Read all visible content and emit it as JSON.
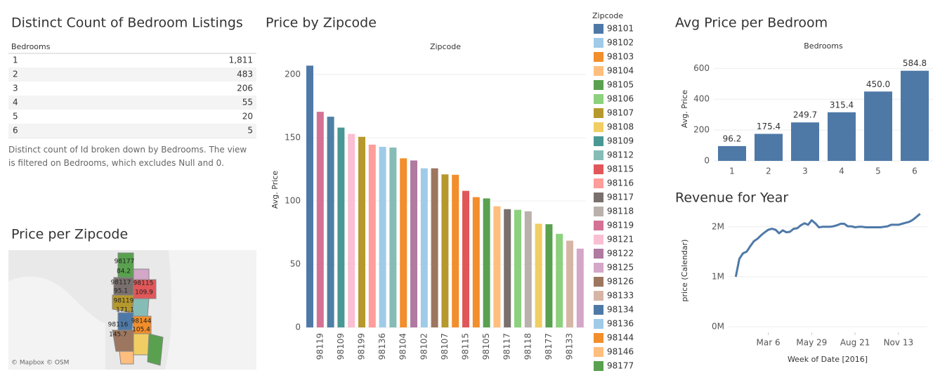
{
  "table": {
    "title": "Distinct Count of Bedroom Listings",
    "header": "Bedrooms",
    "rows": [
      [
        "1",
        "1,811"
      ],
      [
        "2",
        "483"
      ],
      [
        "3",
        "206"
      ],
      [
        "4",
        "55"
      ],
      [
        "5",
        "20"
      ],
      [
        "6",
        "5"
      ]
    ],
    "note": "Distinct count of Id broken down by Bedrooms. The view is filtered on Bedrooms, which excludes Null and 0."
  },
  "map": {
    "title": "Price per Zipcode",
    "labels": [
      "98177",
      "84.2",
      "98117",
      "98115",
      "95.1",
      "109.9",
      "98119",
      "171.1",
      "98116",
      "98144",
      "145.7",
      "105.4"
    ],
    "attribution": "© Mapbox © OSM"
  },
  "chart_data": [
    {
      "type": "bar",
      "title": "Price by Zipcode",
      "header": "Zipcode",
      "ylabel": "Avg. Price",
      "categories": [
        null,
        "98119",
        null,
        "98109",
        null,
        "98199",
        null,
        "98136",
        null,
        "98104",
        null,
        "98102",
        null,
        "98107",
        null,
        "98115",
        null,
        "98105",
        null,
        "98117",
        null,
        "98118",
        null,
        "98177",
        null,
        "98133",
        null
      ],
      "values": [
        207,
        170.5,
        166.6,
        158,
        153,
        150.7,
        144.5,
        142.8,
        142.2,
        133.7,
        132,
        125.8,
        125.8,
        121,
        120.7,
        108,
        103,
        102,
        95.8,
        93.5,
        93,
        91.8,
        82,
        81.6,
        74,
        68.6,
        62.3
      ],
      "colors": [
        "#4e79a7",
        "#d37295",
        "#4f7fa3",
        "#499894",
        "#fabfd2",
        "#b6992d",
        "#ff9d9a",
        "#a0cbe8",
        "#86bcb6",
        "#f28e2b",
        "#b07aa1",
        "#a0cbe8",
        "#9d7660",
        "#b6992d",
        "#f28e2b",
        "#e15759",
        "#f28e2b",
        "#59a14f",
        "#ffbe7d",
        "#79706e",
        "#8cd17d",
        "#bab0ac",
        "#f1ce63",
        "#59a14f",
        "#8cd17d",
        "#d7b5a6",
        "#d4a6c8"
      ],
      "ylim": [
        0,
        215
      ],
      "yticks": [
        0,
        50,
        100,
        150,
        200
      ],
      "grid": true,
      "legend": {
        "title": "Zipcode",
        "items": [
          {
            "name": "98101",
            "color": "#4e79a7"
          },
          {
            "name": "98102",
            "color": "#a0cbe8"
          },
          {
            "name": "98103",
            "color": "#f28e2b"
          },
          {
            "name": "98104",
            "color": "#ffbe7d"
          },
          {
            "name": "98105",
            "color": "#59a14f"
          },
          {
            "name": "98106",
            "color": "#8cd17d"
          },
          {
            "name": "98107",
            "color": "#b6992d"
          },
          {
            "name": "98108",
            "color": "#f1ce63"
          },
          {
            "name": "98109",
            "color": "#499894"
          },
          {
            "name": "98112",
            "color": "#86bcb6"
          },
          {
            "name": "98115",
            "color": "#e15759"
          },
          {
            "name": "98116",
            "color": "#ff9d9a"
          },
          {
            "name": "98117",
            "color": "#79706e"
          },
          {
            "name": "98118",
            "color": "#bab0ac"
          },
          {
            "name": "98119",
            "color": "#d37295"
          },
          {
            "name": "98121",
            "color": "#fabfd2"
          },
          {
            "name": "98122",
            "color": "#b07aa1"
          },
          {
            "name": "98125",
            "color": "#d4a6c8"
          },
          {
            "name": "98126",
            "color": "#9d7660"
          },
          {
            "name": "98133",
            "color": "#d7b5a6"
          },
          {
            "name": "98134",
            "color": "#4e79a7"
          },
          {
            "name": "98136",
            "color": "#a0cbe8"
          },
          {
            "name": "98144",
            "color": "#f28e2b"
          },
          {
            "name": "98146",
            "color": "#ffbe7d"
          },
          {
            "name": "98177",
            "color": "#59a14f"
          }
        ]
      }
    },
    {
      "type": "bar",
      "title": "Avg Price per Bedroom",
      "header": "Bedrooms",
      "ylabel": "Avg. Price",
      "categories": [
        "1",
        "2",
        "3",
        "4",
        "5",
        "6"
      ],
      "values": [
        96.2,
        175.4,
        249.7,
        315.4,
        450.0,
        584.8
      ],
      "value_labels": [
        "96.2",
        "175.4",
        "249.7",
        "315.4",
        "450.0",
        "584.8"
      ],
      "color": "#4e79a7",
      "ylim": [
        0,
        670
      ],
      "yticks": [
        0,
        200,
        400,
        600
      ],
      "grid": true
    },
    {
      "type": "line",
      "title": "Revenue for Year",
      "ylabel": "price (Calendar)",
      "xlabel": "Week of Date [2016]",
      "x": [
        "2016-01-03",
        "2016-01-10",
        "2016-01-17",
        "2016-01-24",
        "2016-01-31",
        "2016-02-07",
        "2016-02-14",
        "2016-02-21",
        "2016-02-28",
        "2016-03-06",
        "2016-03-13",
        "2016-03-20",
        "2016-03-27",
        "2016-04-03",
        "2016-04-10",
        "2016-04-17",
        "2016-04-24",
        "2016-05-01",
        "2016-05-08",
        "2016-05-15",
        "2016-05-22",
        "2016-05-29",
        "2016-06-05",
        "2016-06-12",
        "2016-06-19",
        "2016-06-26",
        "2016-07-03",
        "2016-07-10",
        "2016-07-17",
        "2016-07-24",
        "2016-07-31",
        "2016-08-07",
        "2016-08-14",
        "2016-08-21",
        "2016-08-28",
        "2016-09-04",
        "2016-09-11",
        "2016-09-18",
        "2016-09-25",
        "2016-10-02",
        "2016-10-09",
        "2016-10-16",
        "2016-10-23",
        "2016-10-30",
        "2016-11-06",
        "2016-11-13",
        "2016-11-20",
        "2016-11-27",
        "2016-12-04",
        "2016-12-11",
        "2016-12-18",
        "2016-12-25"
      ],
      "values": [
        1000000,
        1360000,
        1470000,
        1500000,
        1610000,
        1710000,
        1760000,
        1830000,
        1890000,
        1940000,
        1960000,
        1940000,
        1870000,
        1930000,
        1890000,
        1900000,
        1960000,
        1970000,
        2030000,
        2070000,
        2040000,
        2130000,
        2070000,
        1990000,
        2000000,
        2000000,
        2000000,
        2010000,
        2030000,
        2060000,
        2060000,
        2010000,
        2010000,
        1990000,
        2000000,
        2000000,
        1990000,
        1990000,
        1990000,
        1990000,
        1990000,
        2000000,
        2010000,
        2040000,
        2040000,
        2040000,
        2060000,
        2080000,
        2100000,
        2140000,
        2200000,
        2260000
      ],
      "color": "#4e79a7",
      "xlim": [
        "2015-12-20",
        "2017-01-08"
      ],
      "xticks": [
        {
          "value": "2016-03-06",
          "label": "Mar 6"
        },
        {
          "value": "2016-05-29",
          "label": "May 29"
        },
        {
          "value": "2016-08-21",
          "label": "Aug 21"
        },
        {
          "value": "2016-11-13",
          "label": "Nov 13"
        }
      ],
      "ylim": [
        0,
        2250000
      ],
      "yticks": [
        {
          "value": 0,
          "label": "0M"
        },
        {
          "value": 1000000,
          "label": "1M"
        },
        {
          "value": 2000000,
          "label": "2M"
        }
      ],
      "grid": true
    }
  ]
}
